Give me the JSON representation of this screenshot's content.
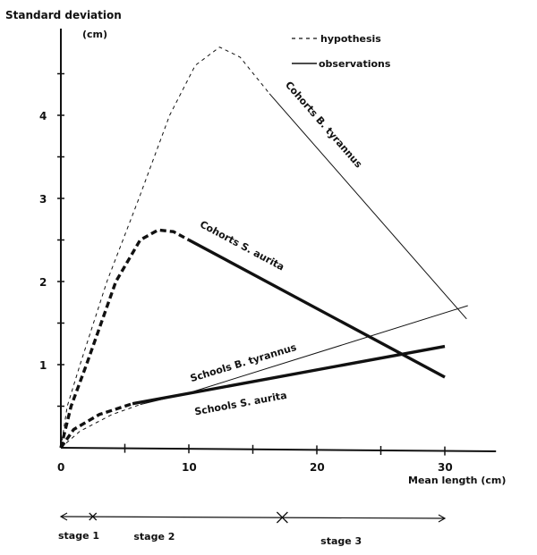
{
  "chart_data": {
    "type": "line",
    "ylabel": "Standard deviation",
    "ylabel_unit": "(cm)",
    "xlabel": "Mean length (cm)",
    "xlim": [
      0,
      34
    ],
    "ylim": [
      0,
      5
    ],
    "x_ticks": [
      0,
      10,
      20,
      30
    ],
    "x_tick_labels": [
      "0",
      "10",
      "20",
      "30"
    ],
    "y_ticks": [
      1,
      2,
      3,
      4
    ],
    "y_tick_labels": [
      "1",
      "2",
      "3",
      "4"
    ],
    "grid": false,
    "legend": {
      "placement": "top-right",
      "entries": [
        {
          "label": "hypothesis",
          "style": "dashed"
        },
        {
          "label": "observations",
          "style": "solid"
        }
      ]
    },
    "series": [
      {
        "name": "Cohorts B. tyrannus",
        "weight": "thin",
        "hypothesis": [
          [
            0,
            0
          ],
          [
            0.5,
            0.5
          ],
          [
            1.5,
            1
          ],
          [
            3.6,
            2
          ],
          [
            6.1,
            3
          ],
          [
            8.5,
            4
          ],
          [
            10.5,
            4.6
          ],
          [
            12.4,
            4.82
          ],
          [
            14,
            4.7
          ],
          [
            16.3,
            4.26
          ]
        ],
        "observations": [
          [
            16.3,
            4.26
          ],
          [
            31.7,
            1.55
          ]
        ]
      },
      {
        "name": "Cohorts S. aurita",
        "weight": "thick",
        "hypothesis": [
          [
            0,
            0
          ],
          [
            0.8,
            0.5
          ],
          [
            2.0,
            1
          ],
          [
            4.3,
            2
          ],
          [
            6.2,
            2.5
          ],
          [
            7.6,
            2.62
          ],
          [
            8.8,
            2.6
          ],
          [
            10,
            2.5
          ]
        ],
        "observations": [
          [
            10,
            2.5
          ],
          [
            30,
            0.85
          ]
        ]
      },
      {
        "name": "Schools B. tyrannus",
        "weight": "thin",
        "hypothesis": [
          [
            0,
            0
          ],
          [
            1.5,
            0.2
          ],
          [
            4,
            0.4
          ],
          [
            6.2,
            0.52
          ]
        ],
        "observations": [
          [
            6.2,
            0.52
          ],
          [
            10,
            0.66
          ],
          [
            31.8,
            1.71
          ]
        ]
      },
      {
        "name": "Schools S. aurita",
        "weight": "thick",
        "hypothesis": [
          [
            0,
            0
          ],
          [
            1,
            0.22
          ],
          [
            3,
            0.4
          ],
          [
            5.6,
            0.53
          ]
        ],
        "observations": [
          [
            5.6,
            0.53
          ],
          [
            30,
            1.22
          ]
        ]
      }
    ],
    "stages": {
      "labels": [
        "stage 1",
        "stage 2",
        "stage 3"
      ],
      "boundaries": [
        2.5,
        17.3
      ],
      "range": [
        0,
        30
      ]
    }
  }
}
